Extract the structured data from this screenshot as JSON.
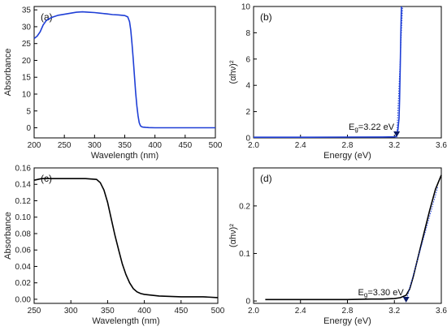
{
  "chart_data": [
    {
      "panel": "(a)",
      "type": "line",
      "xlabel": "Wavelength (nm)",
      "ylabel": "Absorbance",
      "xlim": [
        200,
        500
      ],
      "ylim": [
        -3,
        36
      ],
      "xticks": [
        200,
        250,
        300,
        350,
        400,
        450,
        500
      ],
      "yticks": [
        0,
        5,
        10,
        15,
        20,
        25,
        30,
        35
      ],
      "line_color": "#1f3fd6",
      "series": [
        {
          "x": [
            200,
            205,
            210,
            215,
            220,
            225,
            230,
            240,
            250,
            260,
            270,
            280,
            290,
            300,
            310,
            320,
            330,
            340,
            350,
            355,
            358,
            360,
            362,
            364,
            366,
            368,
            370,
            372,
            374,
            376,
            378,
            380,
            385,
            390,
            400,
            450,
            500
          ],
          "y": [
            26.5,
            27.2,
            28.5,
            30.5,
            31.8,
            32.4,
            32.8,
            33.4,
            33.7,
            34.0,
            34.3,
            34.4,
            34.3,
            34.2,
            34.0,
            33.8,
            33.6,
            33.5,
            33.3,
            32.9,
            31.5,
            29.0,
            25.0,
            20.5,
            15.5,
            10.5,
            6.5,
            3.5,
            1.5,
            0.6,
            0.3,
            0.2,
            0.1,
            0.05,
            0.0,
            0.0,
            0.0
          ]
        }
      ]
    },
    {
      "panel": "(b)",
      "type": "line",
      "xlabel": "Energy (eV)",
      "ylabel": "(αhν)²",
      "xlim": [
        2.0,
        3.6
      ],
      "ylim": [
        0,
        10
      ],
      "xticks": [
        2.0,
        2.4,
        2.8,
        3.2,
        3.6
      ],
      "xtick_labels": [
        "2.0",
        "2.4",
        "2.8",
        "3.2",
        "3.6"
      ],
      "yticks": [
        0,
        2,
        4,
        6,
        8,
        10
      ],
      "line_color": "#1f3fd6",
      "series": [
        {
          "x": [
            2.0,
            2.4,
            2.8,
            3.1,
            3.2,
            3.21,
            3.22,
            3.23,
            3.24,
            3.245,
            3.25,
            3.255,
            3.26
          ],
          "y": [
            0.05,
            0.05,
            0.06,
            0.07,
            0.08,
            0.1,
            0.2,
            0.6,
            1.5,
            3.0,
            5.5,
            8.0,
            10.0
          ]
        }
      ],
      "fit_line": {
        "x": [
          3.22,
          3.27
        ],
        "y": [
          0,
          10
        ]
      },
      "annotation": {
        "text": "E",
        "subscript": "g",
        "value": "=3.22 eV",
        "x": 3.22
      }
    },
    {
      "panel": "(c)",
      "type": "line",
      "xlabel": "Wavelength (nm)",
      "ylabel": "Absorbance",
      "xlim": [
        250,
        500
      ],
      "ylim": [
        -0.005,
        0.16
      ],
      "xticks": [
        250,
        300,
        350,
        400,
        450,
        500
      ],
      "yticks": [
        0.0,
        0.02,
        0.04,
        0.06,
        0.08,
        0.1,
        0.12,
        0.14,
        0.16
      ],
      "ytick_labels": [
        "0.00",
        "0.02",
        "0.04",
        "0.06",
        "0.08",
        "0.10",
        "0.12",
        "0.14",
        "0.16"
      ],
      "line_color": "#000000",
      "series": [
        {
          "x": [
            250,
            255,
            260,
            270,
            280,
            300,
            320,
            335,
            340,
            345,
            350,
            355,
            360,
            365,
            370,
            375,
            380,
            385,
            390,
            395,
            400,
            410,
            420,
            450,
            480,
            500
          ],
          "y": [
            0.145,
            0.146,
            0.147,
            0.147,
            0.147,
            0.147,
            0.147,
            0.146,
            0.142,
            0.133,
            0.118,
            0.098,
            0.078,
            0.06,
            0.043,
            0.03,
            0.02,
            0.013,
            0.009,
            0.007,
            0.006,
            0.005,
            0.004,
            0.003,
            0.003,
            0.002
          ]
        }
      ]
    },
    {
      "panel": "(d)",
      "type": "line",
      "xlabel": "Energy (eV)",
      "ylabel": "(αhν)²",
      "xlim": [
        2.0,
        3.6
      ],
      "ylim": [
        -0.005,
        0.28
      ],
      "xticks": [
        2.0,
        2.4,
        2.8,
        3.2,
        3.6
      ],
      "xtick_labels": [
        "2.0",
        "2.4",
        "2.8",
        "3.2",
        "3.6"
      ],
      "yticks": [
        0.0,
        0.1,
        0.2
      ],
      "line_color": "#000000",
      "series": [
        {
          "x": [
            2.1,
            2.4,
            2.8,
            3.0,
            3.1,
            3.2,
            3.25,
            3.3,
            3.33,
            3.36,
            3.4,
            3.45,
            3.5,
            3.55,
            3.6
          ],
          "y": [
            0.003,
            0.003,
            0.003,
            0.004,
            0.004,
            0.005,
            0.007,
            0.012,
            0.025,
            0.05,
            0.09,
            0.14,
            0.19,
            0.235,
            0.265
          ]
        }
      ],
      "fit_line": {
        "x": [
          3.3,
          3.57
        ],
        "y": [
          0,
          0.24
        ]
      },
      "annotation": {
        "text": "E",
        "subscript": "g",
        "value": "=3.30 eV",
        "x": 3.3
      }
    }
  ]
}
